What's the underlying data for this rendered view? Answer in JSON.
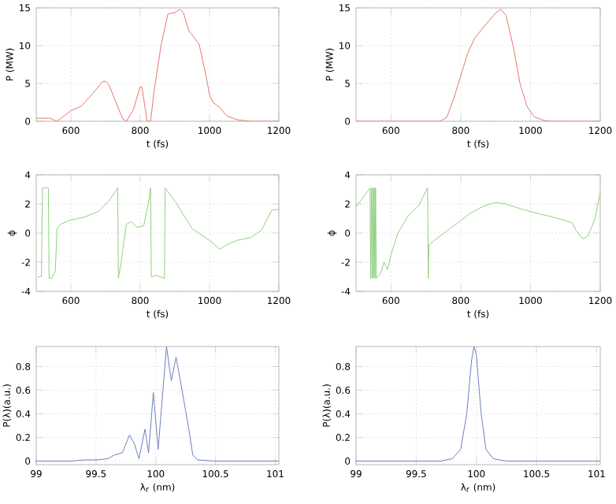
{
  "chart_data": [
    {
      "type": "line",
      "xlabel": "t (fs)",
      "ylabel": "P (MW)",
      "xlim": [
        500,
        1200
      ],
      "ylim": [
        0,
        15
      ],
      "xticks": [
        600,
        800,
        1000,
        1200
      ],
      "yticks": [
        0,
        5,
        10,
        15
      ],
      "grid": true,
      "series": [
        {
          "color": "#e8756f",
          "x": [
            500,
            540,
            560,
            580,
            600,
            630,
            660,
            690,
            700,
            710,
            730,
            750,
            760,
            780,
            800,
            805,
            815,
            820,
            830,
            840,
            860,
            880,
            900,
            915,
            925,
            940,
            960,
            970,
            990,
            1000,
            1010,
            1030,
            1050,
            1080,
            1120,
            1200
          ],
          "values": [
            0.4,
            0.4,
            0,
            0.7,
            1.4,
            2,
            3.5,
            5.2,
            5.3,
            4.8,
            2.5,
            0.3,
            0,
            1.5,
            4.6,
            4.5,
            1.5,
            0,
            0,
            4,
            10,
            14.2,
            14.4,
            14.8,
            14.3,
            12,
            10.8,
            10.2,
            6,
            3.5,
            2.5,
            1.8,
            0.7,
            0.2,
            0,
            0
          ]
        }
      ]
    },
    {
      "type": "line",
      "xlabel": "t (fs)",
      "ylabel": "P (MW)",
      "xlim": [
        500,
        1200
      ],
      "ylim": [
        0,
        15
      ],
      "xticks": [
        600,
        800,
        1000,
        1200
      ],
      "yticks": [
        0,
        5,
        10,
        15
      ],
      "grid": true,
      "series": [
        {
          "color": "#e8756f",
          "x": [
            500,
            740,
            760,
            780,
            800,
            820,
            840,
            870,
            900,
            915,
            930,
            950,
            970,
            990,
            1010,
            1040,
            1060,
            1200
          ],
          "values": [
            0,
            0,
            0.5,
            3,
            6,
            9,
            11,
            12.7,
            14.3,
            14.8,
            14,
            10,
            5,
            2,
            0.6,
            0.1,
            0,
            0
          ]
        }
      ]
    },
    {
      "type": "line",
      "xlabel": "t (fs)",
      "ylabel": "ϕ",
      "xlim": [
        500,
        1200
      ],
      "ylim": [
        -4,
        4
      ],
      "xticks": [
        600,
        800,
        1000,
        1200
      ],
      "yticks": [
        -4,
        -2,
        0,
        2,
        4
      ],
      "grid": true,
      "series": [
        {
          "color": "#8fd07f",
          "x": [
            505,
            515,
            518,
            535,
            537,
            545,
            555,
            560,
            570,
            600,
            640,
            680,
            710,
            735,
            737,
            745,
            760,
            775,
            790,
            810,
            825,
            830,
            832,
            845,
            870,
            872,
            900,
            950,
            1000,
            1030,
            1050,
            1080,
            1120,
            1150,
            1180,
            1200
          ],
          "values": [
            -3,
            -3,
            3.1,
            3.1,
            -3.1,
            -3.1,
            -2.6,
            0.3,
            0.6,
            0.9,
            1.1,
            1.5,
            2.2,
            3.1,
            -3.1,
            -2,
            0.6,
            0.8,
            0.4,
            0.5,
            2.2,
            3.1,
            -3,
            -2.9,
            -3.1,
            3.1,
            2.2,
            0.3,
            -0.5,
            -1.1,
            -0.8,
            -0.5,
            -0.3,
            0.2,
            1.6,
            1.6
          ]
        }
      ]
    },
    {
      "type": "line",
      "xlabel": "t (fs)",
      "ylabel": "ϕ",
      "xlim": [
        500,
        1200
      ],
      "ylim": [
        -4,
        4
      ],
      "xticks": [
        600,
        800,
        1000,
        1200
      ],
      "yticks": [
        -4,
        -2,
        0,
        2,
        4
      ],
      "grid": true,
      "series": [
        {
          "color": "#8fd07f",
          "x": [
            500,
            525,
            540,
            542,
            544,
            546,
            548,
            550,
            552,
            554,
            556,
            558,
            570,
            580,
            590,
            600,
            620,
            650,
            680,
            705,
            707,
            709,
            730,
            780,
            830,
            870,
            900,
            930,
            980,
            1030,
            1080,
            1120,
            1130,
            1150,
            1165,
            1185,
            1200
          ],
          "values": [
            1.8,
            2.6,
            3.1,
            -3.1,
            3.1,
            -3.1,
            3.1,
            -3.1,
            3.1,
            -3.1,
            3.1,
            -3.1,
            -2.8,
            -2,
            -2.5,
            -1.5,
            0,
            1.2,
            1.9,
            3.1,
            -3.1,
            -0.8,
            -0.4,
            0.5,
            1.4,
            1.9,
            2.1,
            2.0,
            1.6,
            1.3,
            1.0,
            0.7,
            0.2,
            -0.4,
            -0.2,
            1,
            2.8
          ]
        }
      ]
    },
    {
      "type": "line",
      "xlabel": "λ$_{r}$ (nm)",
      "ylabel": "P(λ)(a.u.)",
      "xlim": [
        99,
        101.03
      ],
      "ylim": [
        -0.03,
        0.97
      ],
      "xticks": [
        99,
        99.5,
        100,
        100.5,
        101
      ],
      "yticks": [
        0,
        0.2,
        0.4,
        0.6,
        0.8
      ],
      "grid": true,
      "series": [
        {
          "color": "#6b7fbf",
          "x": [
            99,
            99.3,
            99.4,
            99.5,
            99.6,
            99.65,
            99.72,
            99.78,
            99.82,
            99.86,
            99.91,
            99.94,
            99.98,
            100.02,
            100.09,
            100.13,
            100.17,
            100.22,
            100.28,
            100.31,
            100.35,
            100.5,
            101.03
          ],
          "values": [
            0,
            0,
            0.01,
            0.01,
            0.02,
            0.05,
            0.07,
            0.22,
            0.15,
            0.02,
            0.27,
            0.07,
            0.58,
            0.1,
            0.97,
            0.68,
            0.88,
            0.6,
            0.25,
            0.05,
            0.01,
            0,
            0
          ]
        }
      ]
    },
    {
      "type": "line",
      "xlabel": "λ$_{r}$ (nm)",
      "ylabel": "P(λ)(a.u.)",
      "xlim": [
        99,
        101.03
      ],
      "ylim": [
        -0.03,
        0.97
      ],
      "xticks": [
        99,
        99.5,
        100,
        100.5,
        101
      ],
      "yticks": [
        0,
        0.2,
        0.4,
        0.6,
        0.8
      ],
      "grid": true,
      "series": [
        {
          "color": "#6b7fbf",
          "x": [
            99,
            99.7,
            99.8,
            99.87,
            99.92,
            99.96,
            99.98,
            100.0,
            100.04,
            100.08,
            100.14,
            100.25,
            101.03
          ],
          "values": [
            0,
            0,
            0.02,
            0.1,
            0.4,
            0.85,
            0.97,
            0.9,
            0.4,
            0.1,
            0.02,
            0,
            0
          ]
        }
      ]
    }
  ]
}
